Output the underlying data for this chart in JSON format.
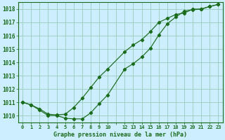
{
  "title": "Graphe pression niveau de la mer (hPa)",
  "bg_color": "#cceeff",
  "plot_bg_color": "#cceeff",
  "line_color": "#1a6b1a",
  "grid_color": "#99ccbb",
  "xlabel_color": "#1a6b1a",
  "xlim": [
    -0.5,
    23.5
  ],
  "ylim": [
    1009.5,
    1018.5
  ],
  "yticks": [
    1010,
    1011,
    1012,
    1013,
    1014,
    1015,
    1016,
    1017,
    1018
  ],
  "xtick_labels": [
    "0",
    "1",
    "2",
    "3",
    "4",
    "5",
    "6",
    "7",
    "8",
    "9",
    "10",
    "",
    "12",
    "13",
    "14",
    "15",
    "16",
    "17",
    "18",
    "19",
    "20",
    "21",
    "22",
    "23"
  ],
  "line1_x": [
    0,
    1,
    2,
    3,
    4,
    5,
    6,
    7,
    8,
    9,
    10,
    12,
    13,
    14,
    15,
    16,
    17,
    18,
    19,
    20,
    21,
    22,
    23
  ],
  "line1_y": [
    1011.0,
    1010.8,
    1010.4,
    1010.0,
    1010.0,
    1009.8,
    1009.75,
    1009.75,
    1010.2,
    1010.9,
    1011.55,
    1013.5,
    1013.9,
    1014.4,
    1015.05,
    1016.05,
    1016.9,
    1017.4,
    1017.85,
    1017.95,
    1018.0,
    1018.2,
    1018.35
  ],
  "line2_x": [
    0,
    1,
    2,
    3,
    4,
    5,
    6,
    7,
    8,
    9,
    10,
    12,
    13,
    14,
    15,
    16,
    17,
    18,
    19,
    20,
    21,
    22,
    23
  ],
  "line2_y": [
    1011.0,
    1010.8,
    1010.5,
    1010.1,
    1010.05,
    1010.1,
    1010.6,
    1011.3,
    1012.1,
    1012.9,
    1013.5,
    1014.8,
    1015.3,
    1015.7,
    1016.3,
    1017.0,
    1017.3,
    1017.6,
    1017.7,
    1018.0,
    1018.0,
    1018.2,
    1018.35
  ]
}
